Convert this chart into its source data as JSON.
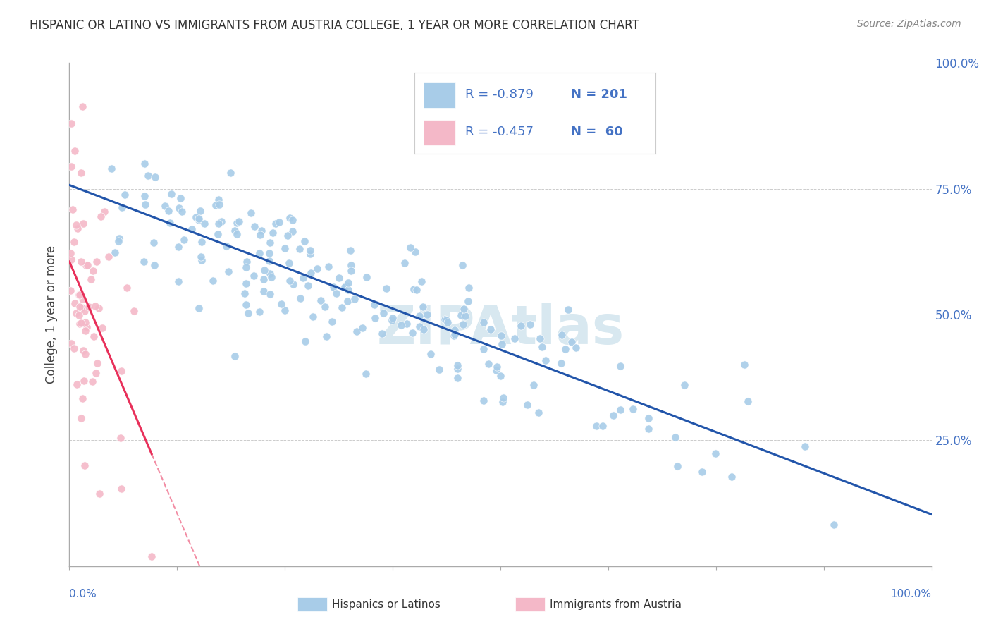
{
  "title": "HISPANIC OR LATINO VS IMMIGRANTS FROM AUSTRIA COLLEGE, 1 YEAR OR MORE CORRELATION CHART",
  "source": "Source: ZipAtlas.com",
  "ylabel": "College, 1 year or more",
  "right_yticks": [
    "100.0%",
    "75.0%",
    "50.0%",
    "25.0%"
  ],
  "right_ytick_vals": [
    1.0,
    0.75,
    0.5,
    0.25
  ],
  "legend_blue_r": "-0.879",
  "legend_blue_n": "201",
  "legend_pink_r": "-0.457",
  "legend_pink_n": "60",
  "legend_label_blue": "Hispanics or Latinos",
  "legend_label_pink": "Immigrants from Austria",
  "blue_color": "#a8cce8",
  "pink_color": "#f4b8c8",
  "blue_line_color": "#2255aa",
  "pink_line_color": "#e8305a",
  "blue_scatter_seed": 42,
  "pink_scatter_seed": 7,
  "blue_n": 201,
  "pink_n": 60,
  "blue_r": -0.879,
  "pink_r": -0.457,
  "xlim": [
    0.0,
    1.0
  ],
  "ylim": [
    0.0,
    1.0
  ],
  "background_color": "#ffffff",
  "grid_color": "#cccccc",
  "right_label_color": "#4472c4",
  "watermark_color": "#d8e8f0",
  "title_color": "#333333",
  "source_color": "#888888"
}
